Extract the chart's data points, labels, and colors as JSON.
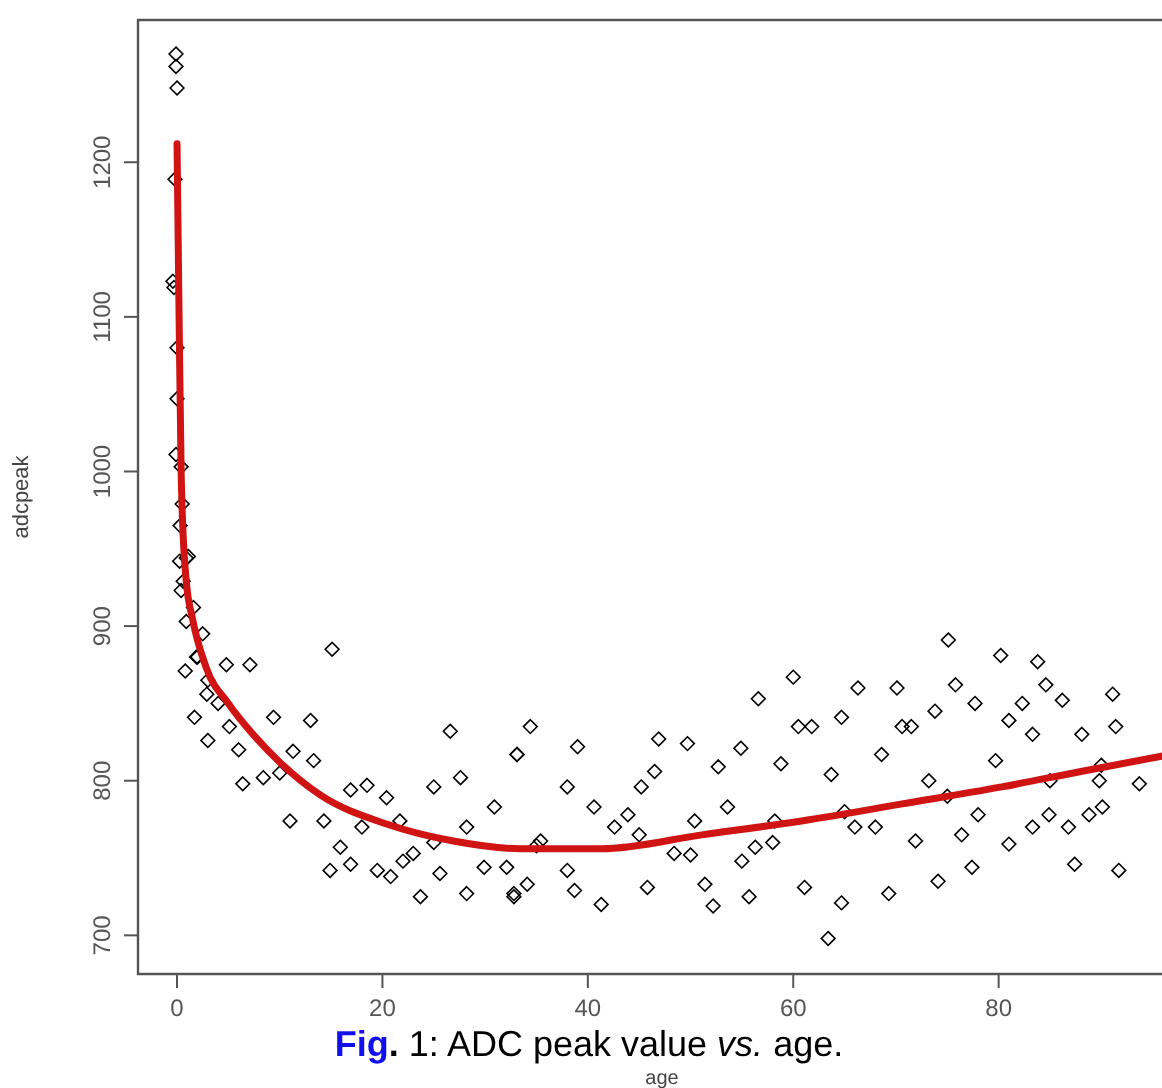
{
  "chart_data": {
    "type": "scatter",
    "xlabel": "age",
    "ylabel": "adcpeak",
    "annotations": [
      "Fig. 1: ADC peak value vs. age."
    ],
    "xlim": [
      -3.8,
      96.1
    ],
    "ylim": [
      675,
      1292
    ],
    "xticks": [
      0,
      20,
      40,
      60,
      80
    ],
    "yticks": [
      700,
      800,
      900,
      1000,
      1100,
      1200
    ],
    "marker": "diamond",
    "series": [
      {
        "type": "scatter",
        "color": "#000000",
        "x": [
          -0.1,
          -0.1,
          0,
          -0.2,
          -0.4,
          -0.3,
          0,
          0,
          -0.1,
          0.4,
          0.5,
          0.3,
          1.1,
          0.25,
          0.9,
          0.6,
          0.4,
          1.6,
          0.9,
          0.8,
          2.5,
          1.9,
          2.9,
          1.7,
          3.0,
          4.8,
          7.1,
          5.1,
          6.4,
          9.4,
          8.4,
          13.0,
          11.3,
          11.0,
          15.1,
          13.3,
          14.3,
          16.9,
          14.9,
          18.5,
          15.9,
          16.9,
          20.4,
          19.5,
          20.8,
          21.7,
          23.7,
          25.0,
          26.6,
          23.0,
          25.6,
          27.6,
          28.2,
          28.2,
          30.9,
          29.9,
          33.1,
          32.1,
          32.8,
          34.4,
          33.1,
          32.8,
          34.1,
          35.4,
          38.0,
          39.0,
          38.7,
          41.3,
          40.6,
          42.6,
          43.9,
          45.2,
          45.8,
          46.9,
          46.5,
          48.4,
          49.7,
          50.4,
          51.4,
          52.2,
          52.7,
          53.6,
          54.9,
          55.7,
          56.6,
          56.3,
          58.2,
          58.8,
          60.0,
          60.5,
          61.8,
          61.1,
          63.4,
          63.7,
          64.7,
          64.7,
          66.3,
          66.0,
          68.6,
          69.3,
          70.1,
          70.6,
          71.5,
          71.9,
          73.2,
          73.8,
          74.1,
          75.1,
          75.8,
          76.4,
          77.7,
          77.4,
          79.7,
          80.2,
          81.0,
          81.0,
          82.3,
          83.3,
          83.3,
          83.8,
          84.6,
          84.9,
          86.2,
          86.8,
          87.4,
          88.1,
          88.8,
          90.1,
          91.1,
          91.4,
          91.7,
          93.7,
          89.8,
          35,
          38,
          45,
          50,
          55,
          58,
          65,
          68,
          75,
          78,
          85,
          90,
          25,
          22,
          18,
          10,
          6,
          4,
          3,
          2
        ],
        "values": [
          1270,
          1262,
          1248,
          1189,
          1123,
          1119,
          1080,
          1047,
          1011,
          1003,
          979,
          965,
          945,
          942,
          944,
          929,
          923,
          912,
          903,
          871,
          895,
          880,
          856,
          841,
          826,
          875,
          875,
          835,
          798,
          841,
          802,
          839,
          819,
          774,
          885,
          813,
          774,
          794,
          742,
          797,
          757,
          746,
          789,
          742,
          738,
          774,
          725,
          796,
          832,
          753,
          740,
          802,
          770,
          727,
          783,
          744,
          817,
          744,
          727,
          835,
          817,
          725,
          733,
          761,
          796,
          822,
          729,
          720,
          783,
          770,
          778,
          796,
          731,
          827,
          806,
          753,
          824,
          774,
          733,
          719,
          809,
          783,
          821,
          725,
          853,
          757,
          774,
          811,
          867,
          835,
          835,
          731,
          698,
          804,
          841,
          721,
          860,
          770,
          817,
          727,
          860,
          835,
          835,
          761,
          800,
          845,
          735,
          891,
          862,
          765,
          850,
          744,
          813,
          881,
          839,
          759,
          850,
          830,
          770,
          877,
          862,
          778,
          852,
          770,
          746,
          830,
          778,
          783,
          856,
          835,
          742,
          798,
          800,
          758,
          742,
          765,
          752,
          748,
          760,
          780,
          770,
          790,
          778,
          800,
          810,
          760,
          748,
          770,
          805,
          820,
          850,
          865,
          880
        ]
      },
      {
        "type": "line",
        "color": "#d01414",
        "marker": "none",
        "x": [
          0,
          0.2,
          0.4,
          0.6,
          0.9,
          1.5,
          2.85,
          5,
          7.4,
          10,
          13.9,
          20.4,
          26.9,
          33.5,
          41.3,
          51.1,
          60.8,
          70.6,
          80.3,
          88,
          96
        ],
        "values": [
          1212,
          1100,
          1000,
          958,
          929,
          905,
          873,
          850,
          830,
          812,
          791,
          772,
          761,
          756,
          756,
          765,
          774,
          785,
          796,
          806,
          816
        ]
      }
    ]
  }
}
